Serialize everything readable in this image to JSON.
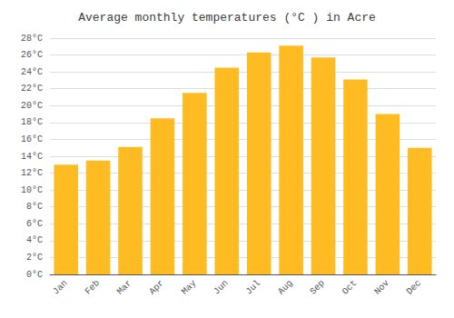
{
  "chart_data": {
    "type": "bar",
    "title": "Average monthly temperatures (°C ) in Acre",
    "categories": [
      "Jan",
      "Feb",
      "Mar",
      "Apr",
      "May",
      "Jun",
      "Jul",
      "Aug",
      "Sep",
      "Oct",
      "Nov",
      "Dec"
    ],
    "values": [
      13.0,
      13.5,
      15.1,
      18.5,
      21.5,
      24.5,
      26.3,
      27.1,
      25.7,
      23.1,
      19.0,
      15.0
    ],
    "color": "#FFBB22",
    "ylim": [
      0,
      28
    ],
    "yticks": [
      {
        "value": 0,
        "label": "0°C"
      },
      {
        "value": 2,
        "label": "2°C"
      },
      {
        "value": 4,
        "label": "4°C"
      },
      {
        "value": 6,
        "label": "6°C"
      },
      {
        "value": 8,
        "label": "8°C"
      },
      {
        "value": 10,
        "label": "10°C"
      },
      {
        "value": 12,
        "label": "12°C"
      },
      {
        "value": 14,
        "label": "14°C"
      },
      {
        "value": 16,
        "label": "16°C"
      },
      {
        "value": 18,
        "label": "18°C"
      },
      {
        "value": 20,
        "label": "20°C"
      },
      {
        "value": 22,
        "label": "22°C"
      },
      {
        "value": 24,
        "label": "24°C"
      },
      {
        "value": 26,
        "label": "26°C"
      },
      {
        "value": 28,
        "label": "28°C"
      }
    ],
    "grid": true
  }
}
